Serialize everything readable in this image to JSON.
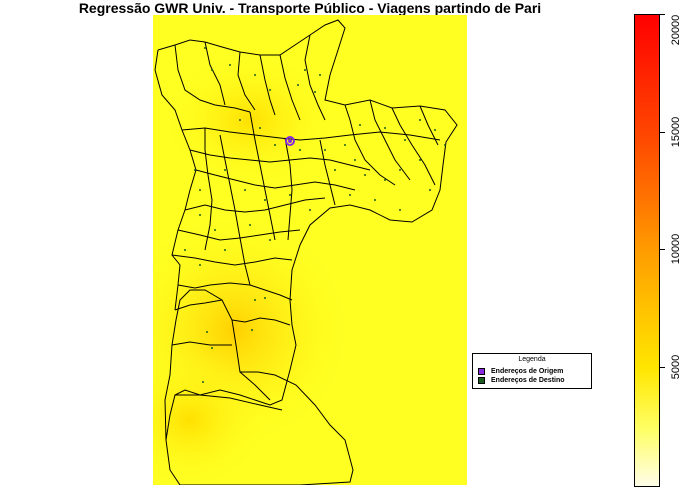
{
  "title": "Regressão GWR Univ. - Transporte Público - Viagens partindo de Pari",
  "legend": {
    "title": "Legenda",
    "items": [
      {
        "label": "Endereços de Origem",
        "color": "#8a2be2"
      },
      {
        "label": "Endereços de Destino",
        "color": "#1b5e20"
      }
    ]
  },
  "colorbar": {
    "min": 0,
    "max": 20000,
    "ticks": [
      "5000",
      "10000",
      "15000",
      "20000"
    ],
    "colors": [
      "#fffde8",
      "#ffff66",
      "#ffe600",
      "#ffc400",
      "#ff9c00",
      "#ff7000",
      "#ff4500",
      "#ff0000"
    ]
  },
  "map": {
    "background_color": "#ffff22",
    "boundary_color": "#000000"
  }
}
